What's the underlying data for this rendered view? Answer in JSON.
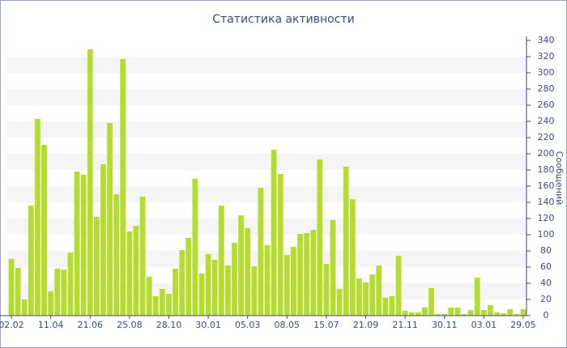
{
  "chart_data": {
    "type": "bar",
    "title": "Статистика активности",
    "y_label": "Сообщений",
    "categories": [
      "02.02",
      null,
      null,
      null,
      null,
      null,
      "11.04",
      null,
      null,
      null,
      null,
      null,
      "21.06",
      null,
      null,
      null,
      null,
      null,
      "25.08",
      null,
      null,
      null,
      null,
      null,
      "28.10",
      null,
      null,
      null,
      null,
      null,
      "30.01",
      null,
      null,
      null,
      null,
      null,
      "05.03",
      null,
      null,
      null,
      null,
      null,
      "08.05",
      null,
      null,
      null,
      null,
      null,
      "15.07",
      null,
      null,
      null,
      null,
      null,
      "21.09",
      null,
      null,
      null,
      null,
      null,
      "21.11",
      null,
      null,
      null,
      null,
      null,
      "30.11",
      null,
      null,
      null,
      null,
      null,
      "03.01",
      null,
      null,
      null,
      null,
      null,
      "29.05"
    ],
    "values": [
      70,
      59,
      20,
      136,
      243,
      211,
      30,
      58,
      57,
      78,
      178,
      174,
      329,
      122,
      187,
      238,
      150,
      317,
      104,
      111,
      147,
      48,
      24,
      33,
      27,
      58,
      81,
      96,
      169,
      52,
      76,
      69,
      136,
      62,
      90,
      124,
      108,
      61,
      158,
      87,
      205,
      175,
      75,
      85,
      101,
      102,
      106,
      193,
      64,
      118,
      33,
      184,
      144,
      46,
      41,
      51,
      62,
      22,
      24,
      74,
      6,
      4,
      4,
      10,
      34,
      2,
      2,
      10,
      10,
      2,
      7,
      47,
      7,
      13,
      4,
      3,
      8,
      2,
      8
    ],
    "color": "#b5dc2e",
    "ylim": [
      0,
      340
    ],
    "yticks": [
      0,
      20,
      40,
      60,
      80,
      100,
      120,
      140,
      160,
      180,
      200,
      220,
      240,
      260,
      280,
      300,
      320,
      340
    ],
    "grid": true
  }
}
